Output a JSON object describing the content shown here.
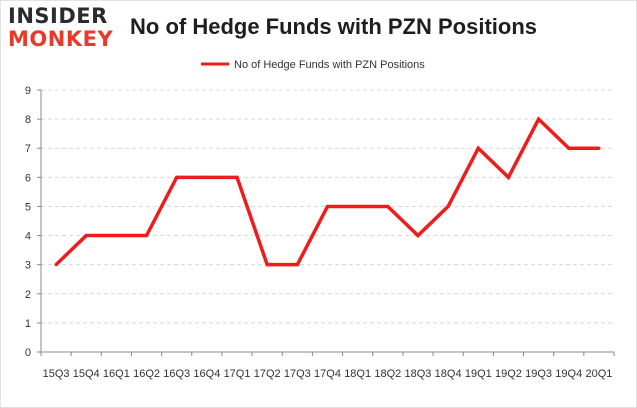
{
  "logo": {
    "line1": "INSIDER",
    "line2": "MONKEY"
  },
  "colors": {
    "series": "#ee1c1c",
    "grid": "#d8d8d8",
    "axis": "#888888",
    "text": "#333333"
  },
  "chart_data": {
    "type": "line",
    "title": "No of Hedge Funds with PZN Positions",
    "xlabel": "",
    "ylabel": "",
    "ylim": [
      0,
      9
    ],
    "yticks": [
      0,
      1,
      2,
      3,
      4,
      5,
      6,
      7,
      8,
      9
    ],
    "grid": true,
    "legend": "top-center",
    "categories": [
      "15Q3",
      "15Q4",
      "16Q1",
      "16Q2",
      "16Q3",
      "16Q4",
      "17Q1",
      "17Q2",
      "17Q3",
      "17Q4",
      "18Q1",
      "18Q2",
      "18Q3",
      "18Q4",
      "19Q1",
      "19Q2",
      "19Q3",
      "19Q4",
      "20Q1"
    ],
    "series": [
      {
        "name": "No of Hedge Funds with PZN Positions",
        "values": [
          3,
          4,
          4,
          4,
          6,
          6,
          6,
          3,
          3,
          5,
          5,
          5,
          4,
          5,
          7,
          6,
          8,
          7,
          7
        ]
      }
    ]
  }
}
